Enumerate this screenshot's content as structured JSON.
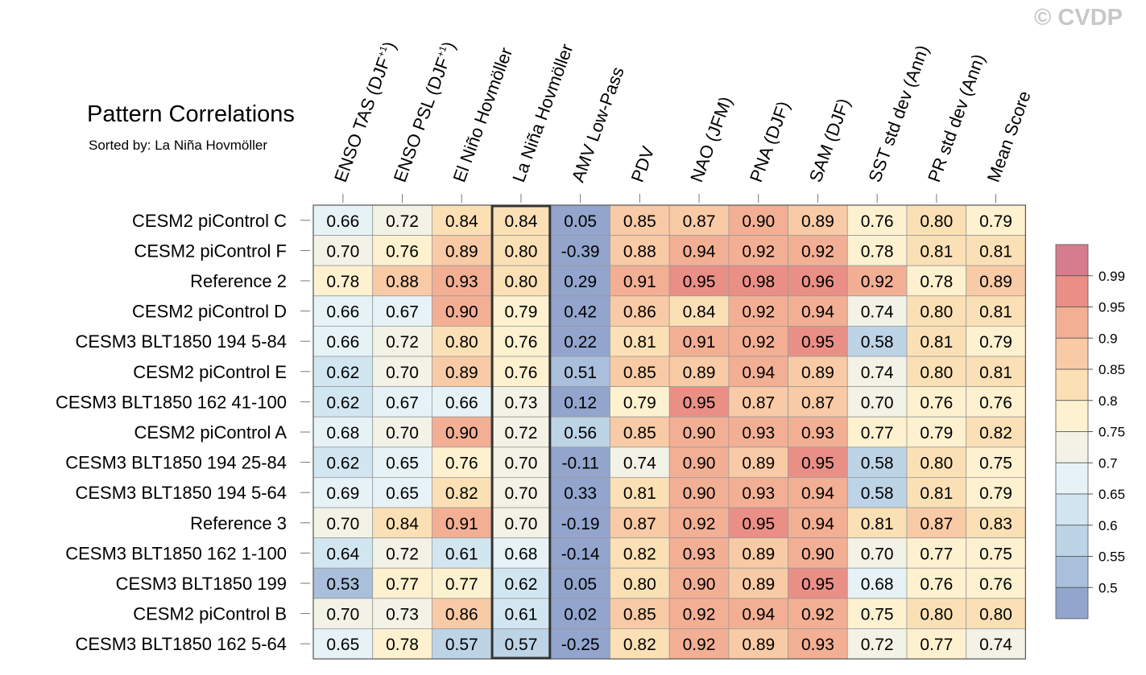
{
  "header": {
    "title": "Pattern Correlations",
    "subtitle": "Sorted by: La Niña Hovmöller",
    "watermark": "© CVDP"
  },
  "chart_data": {
    "type": "heatmap",
    "title": "Pattern Correlations",
    "subtitle": "Sorted by: La Niña Hovmöller",
    "columns": [
      "ENSO TAS (DJF+1)",
      "ENSO PSL (DJF+1)",
      "El Niño Hovmöller",
      "La Niña Hovmöller",
      "AMV Low-Pass",
      "PDV",
      "NAO (JFM)",
      "PNA (DJF)",
      "SAM (DJF)",
      "SST std dev (Ann)",
      "PR std dev (Ann)",
      "Mean Score"
    ],
    "column_labels": [
      {
        "main": "ENSO TAS (DJF",
        "sup": "+1",
        "tail": ")"
      },
      {
        "main": "ENSO PSL (DJF",
        "sup": "+1",
        "tail": ")"
      },
      {
        "main": "El Niño Hovmöller",
        "sup": "",
        "tail": ""
      },
      {
        "main": "La Niña Hovmöller",
        "sup": "",
        "tail": ""
      },
      {
        "main": "AMV Low-Pass",
        "sup": "",
        "tail": ""
      },
      {
        "main": "PDV",
        "sup": "",
        "tail": ""
      },
      {
        "main": "NAO (JFM)",
        "sup": "",
        "tail": ""
      },
      {
        "main": "PNA (DJF)",
        "sup": "",
        "tail": ""
      },
      {
        "main": "SAM (DJF)",
        "sup": "",
        "tail": ""
      },
      {
        "main": "SST std dev (Ann)",
        "sup": "",
        "tail": ""
      },
      {
        "main": "PR std dev (Ann)",
        "sup": "",
        "tail": ""
      },
      {
        "main": "Mean Score",
        "sup": "",
        "tail": ""
      }
    ],
    "rows": [
      "CESM2 piControl C",
      "CESM2 piControl F",
      "Reference 2",
      "CESM2 piControl D",
      "CESM3 BLT1850 194 5-84",
      "CESM2 piControl E",
      "CESM3 BLT1850 162 41-100",
      "CESM2 piControl A",
      "CESM3 BLT1850 194 25-84",
      "CESM3 BLT1850 194 5-64",
      "Reference 3",
      "CESM3 BLT1850 162 1-100",
      "CESM3 BLT1850 199",
      "CESM2 piControl B",
      "CESM3 BLT1850 162 5-64"
    ],
    "values": [
      [
        "0.66",
        "0.72",
        "0.84",
        "0.84",
        "0.05",
        "0.85",
        "0.87",
        "0.90",
        "0.89",
        "0.76",
        "0.80",
        "0.79"
      ],
      [
        "0.70",
        "0.76",
        "0.89",
        "0.80",
        "-0.39",
        "0.88",
        "0.94",
        "0.92",
        "0.92",
        "0.78",
        "0.81",
        "0.81"
      ],
      [
        "0.78",
        "0.88",
        "0.93",
        "0.80",
        "0.29",
        "0.91",
        "0.95",
        "0.98",
        "0.96",
        "0.92",
        "0.78",
        "0.89"
      ],
      [
        "0.66",
        "0.67",
        "0.90",
        "0.79",
        "0.42",
        "0.86",
        "0.84",
        "0.92",
        "0.94",
        "0.74",
        "0.80",
        "0.81"
      ],
      [
        "0.66",
        "0.72",
        "0.80",
        "0.76",
        "0.22",
        "0.81",
        "0.91",
        "0.92",
        "0.95",
        "0.58",
        "0.81",
        "0.79"
      ],
      [
        "0.62",
        "0.70",
        "0.89",
        "0.76",
        "0.51",
        "0.85",
        "0.89",
        "0.94",
        "0.89",
        "0.74",
        "0.80",
        "0.81"
      ],
      [
        "0.62",
        "0.67",
        "0.66",
        "0.73",
        "0.12",
        "0.79",
        "0.95",
        "0.87",
        "0.87",
        "0.70",
        "0.76",
        "0.76"
      ],
      [
        "0.68",
        "0.70",
        "0.90",
        "0.72",
        "0.56",
        "0.85",
        "0.90",
        "0.93",
        "0.93",
        "0.77",
        "0.79",
        "0.82"
      ],
      [
        "0.62",
        "0.65",
        "0.76",
        "0.70",
        "-0.11",
        "0.74",
        "0.90",
        "0.89",
        "0.95",
        "0.58",
        "0.80",
        "0.75"
      ],
      [
        "0.69",
        "0.65",
        "0.82",
        "0.70",
        "0.33",
        "0.81",
        "0.90",
        "0.93",
        "0.94",
        "0.58",
        "0.81",
        "0.79"
      ],
      [
        "0.70",
        "0.84",
        "0.91",
        "0.70",
        "-0.19",
        "0.87",
        "0.92",
        "0.95",
        "0.94",
        "0.81",
        "0.87",
        "0.83"
      ],
      [
        "0.64",
        "0.72",
        "0.61",
        "0.68",
        "-0.14",
        "0.82",
        "0.93",
        "0.89",
        "0.90",
        "0.70",
        "0.77",
        "0.75"
      ],
      [
        "0.53",
        "0.77",
        "0.77",
        "0.62",
        "0.05",
        "0.80",
        "0.90",
        "0.89",
        "0.95",
        "0.68",
        "0.76",
        "0.76"
      ],
      [
        "0.70",
        "0.73",
        "0.86",
        "0.61",
        "0.02",
        "0.85",
        "0.92",
        "0.94",
        "0.92",
        "0.75",
        "0.80",
        "0.80"
      ],
      [
        "0.65",
        "0.78",
        "0.57",
        "0.57",
        "-0.25",
        "0.82",
        "0.92",
        "0.89",
        "0.93",
        "0.72",
        "0.77",
        "0.74"
      ]
    ],
    "highlighted_column": "La Niña Hovmöller",
    "colorbar": {
      "tick_labels": [
        "0.99",
        "0.95",
        "0.9",
        "0.85",
        "0.8",
        "0.75",
        "0.7",
        "0.65",
        "0.6",
        "0.55",
        "0.5"
      ],
      "levels": [
        0.5,
        0.55,
        0.6,
        0.65,
        0.7,
        0.75,
        0.8,
        0.85,
        0.9,
        0.95,
        0.99
      ],
      "colors": [
        "#93a5cd",
        "#a9bfdb",
        "#bdd3e6",
        "#d2e6f1",
        "#e6f2f6",
        "#f2f2e6",
        "#fdf1cf",
        "#fbe0b5",
        "#f8caa5",
        "#f3af94",
        "#ea8f86",
        "#d67c8e"
      ]
    }
  }
}
